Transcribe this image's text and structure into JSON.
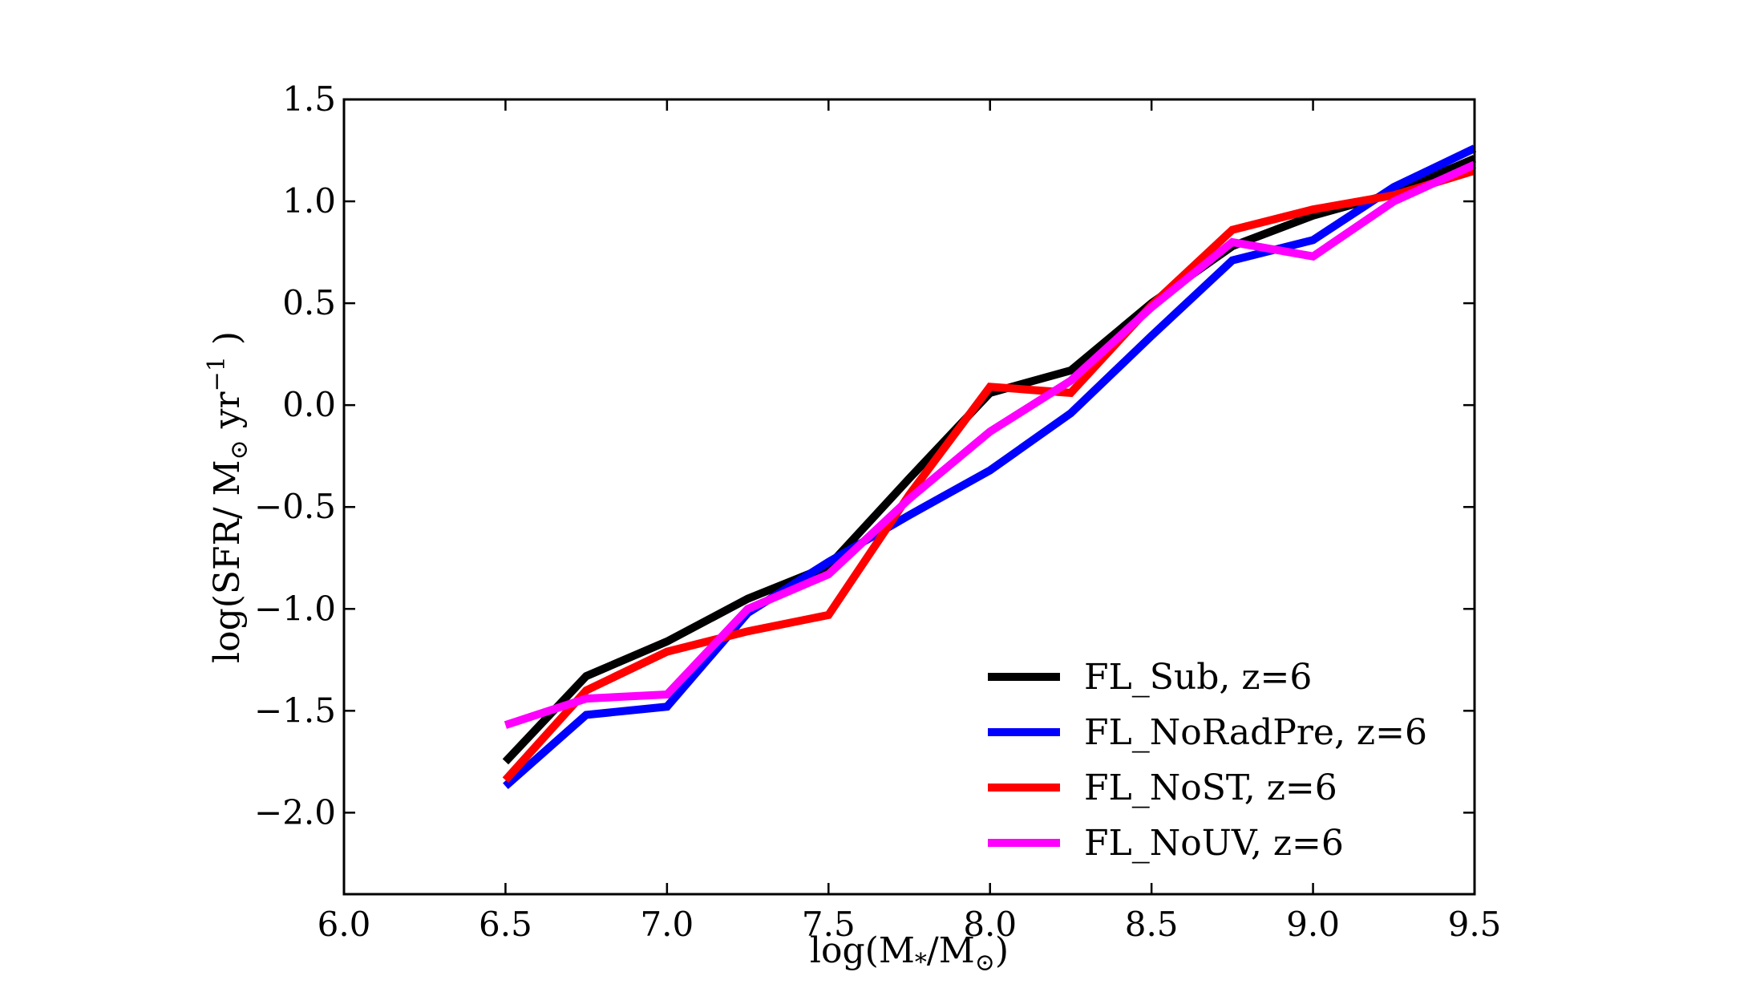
{
  "chart_data": {
    "type": "line",
    "xlabel": {
      "base": "log(M",
      "sub1": "*",
      "mid": "/M",
      "sub2": "⊙",
      "end": ")"
    },
    "ylabel": {
      "base": "log(SFR/ M",
      "sub": "⊙",
      "mid": " yr",
      "sup": "−1",
      "end": " )"
    },
    "xlim": [
      6.0,
      9.5
    ],
    "ylim": [
      -2.4,
      1.5
    ],
    "xticks": [
      6.0,
      6.5,
      7.0,
      7.5,
      8.0,
      8.5,
      9.0,
      9.5
    ],
    "xtick_labels": [
      "6.0",
      "6.5",
      "7.0",
      "7.5",
      "8.0",
      "8.5",
      "9.0",
      "9.5"
    ],
    "yticks": [
      1.5,
      1.0,
      0.5,
      0.0,
      -0.5,
      -1.0,
      -1.5,
      -2.0
    ],
    "ytick_labels": [
      "1.5",
      "1.0",
      "0.5",
      "0.0",
      "−0.5",
      "−1.0",
      "−1.5",
      "−2.0"
    ],
    "grid": false,
    "legend_position": "bottom-right",
    "series": [
      {
        "name": "FL_Sub, z=6",
        "color": "#000000",
        "x": [
          6.5,
          6.75,
          7.0,
          7.25,
          7.5,
          7.75,
          8.0,
          8.25,
          8.5,
          8.75,
          9.0,
          9.25,
          9.5
        ],
        "y": [
          -1.75,
          -1.33,
          -1.16,
          -0.95,
          -0.79,
          -0.36,
          0.06,
          0.17,
          0.5,
          0.78,
          0.93,
          1.04,
          1.21
        ]
      },
      {
        "name": "FL_NoRadPre, z=6",
        "color": "#0000ff",
        "x": [
          6.5,
          6.75,
          7.0,
          7.25,
          7.5,
          7.75,
          8.0,
          8.25,
          8.5,
          8.75,
          9.0,
          9.25,
          9.5
        ],
        "y": [
          -1.87,
          -1.52,
          -1.48,
          -1.02,
          -0.77,
          -0.54,
          -0.32,
          -0.04,
          0.34,
          0.71,
          0.81,
          1.07,
          1.26
        ]
      },
      {
        "name": "FL_NoST, z=6",
        "color": "#ff0000",
        "x": [
          6.5,
          6.75,
          7.0,
          7.25,
          7.5,
          7.75,
          8.0,
          8.25,
          8.5,
          8.75,
          9.0,
          9.25,
          9.5
        ],
        "y": [
          -1.84,
          -1.4,
          -1.21,
          -1.11,
          -1.03,
          -0.44,
          0.09,
          0.06,
          0.49,
          0.86,
          0.96,
          1.03,
          1.15
        ]
      },
      {
        "name": "FL_NoUV, z=6",
        "color": "#ff00ff",
        "x": [
          6.5,
          6.75,
          7.0,
          7.25,
          7.5,
          7.75,
          8.0,
          8.25,
          8.5,
          8.75,
          9.0,
          9.25,
          9.5
        ],
        "y": [
          -1.57,
          -1.44,
          -1.42,
          -1.0,
          -0.83,
          -0.46,
          -0.13,
          0.12,
          0.48,
          0.8,
          0.73,
          1.0,
          1.18
        ]
      }
    ]
  }
}
